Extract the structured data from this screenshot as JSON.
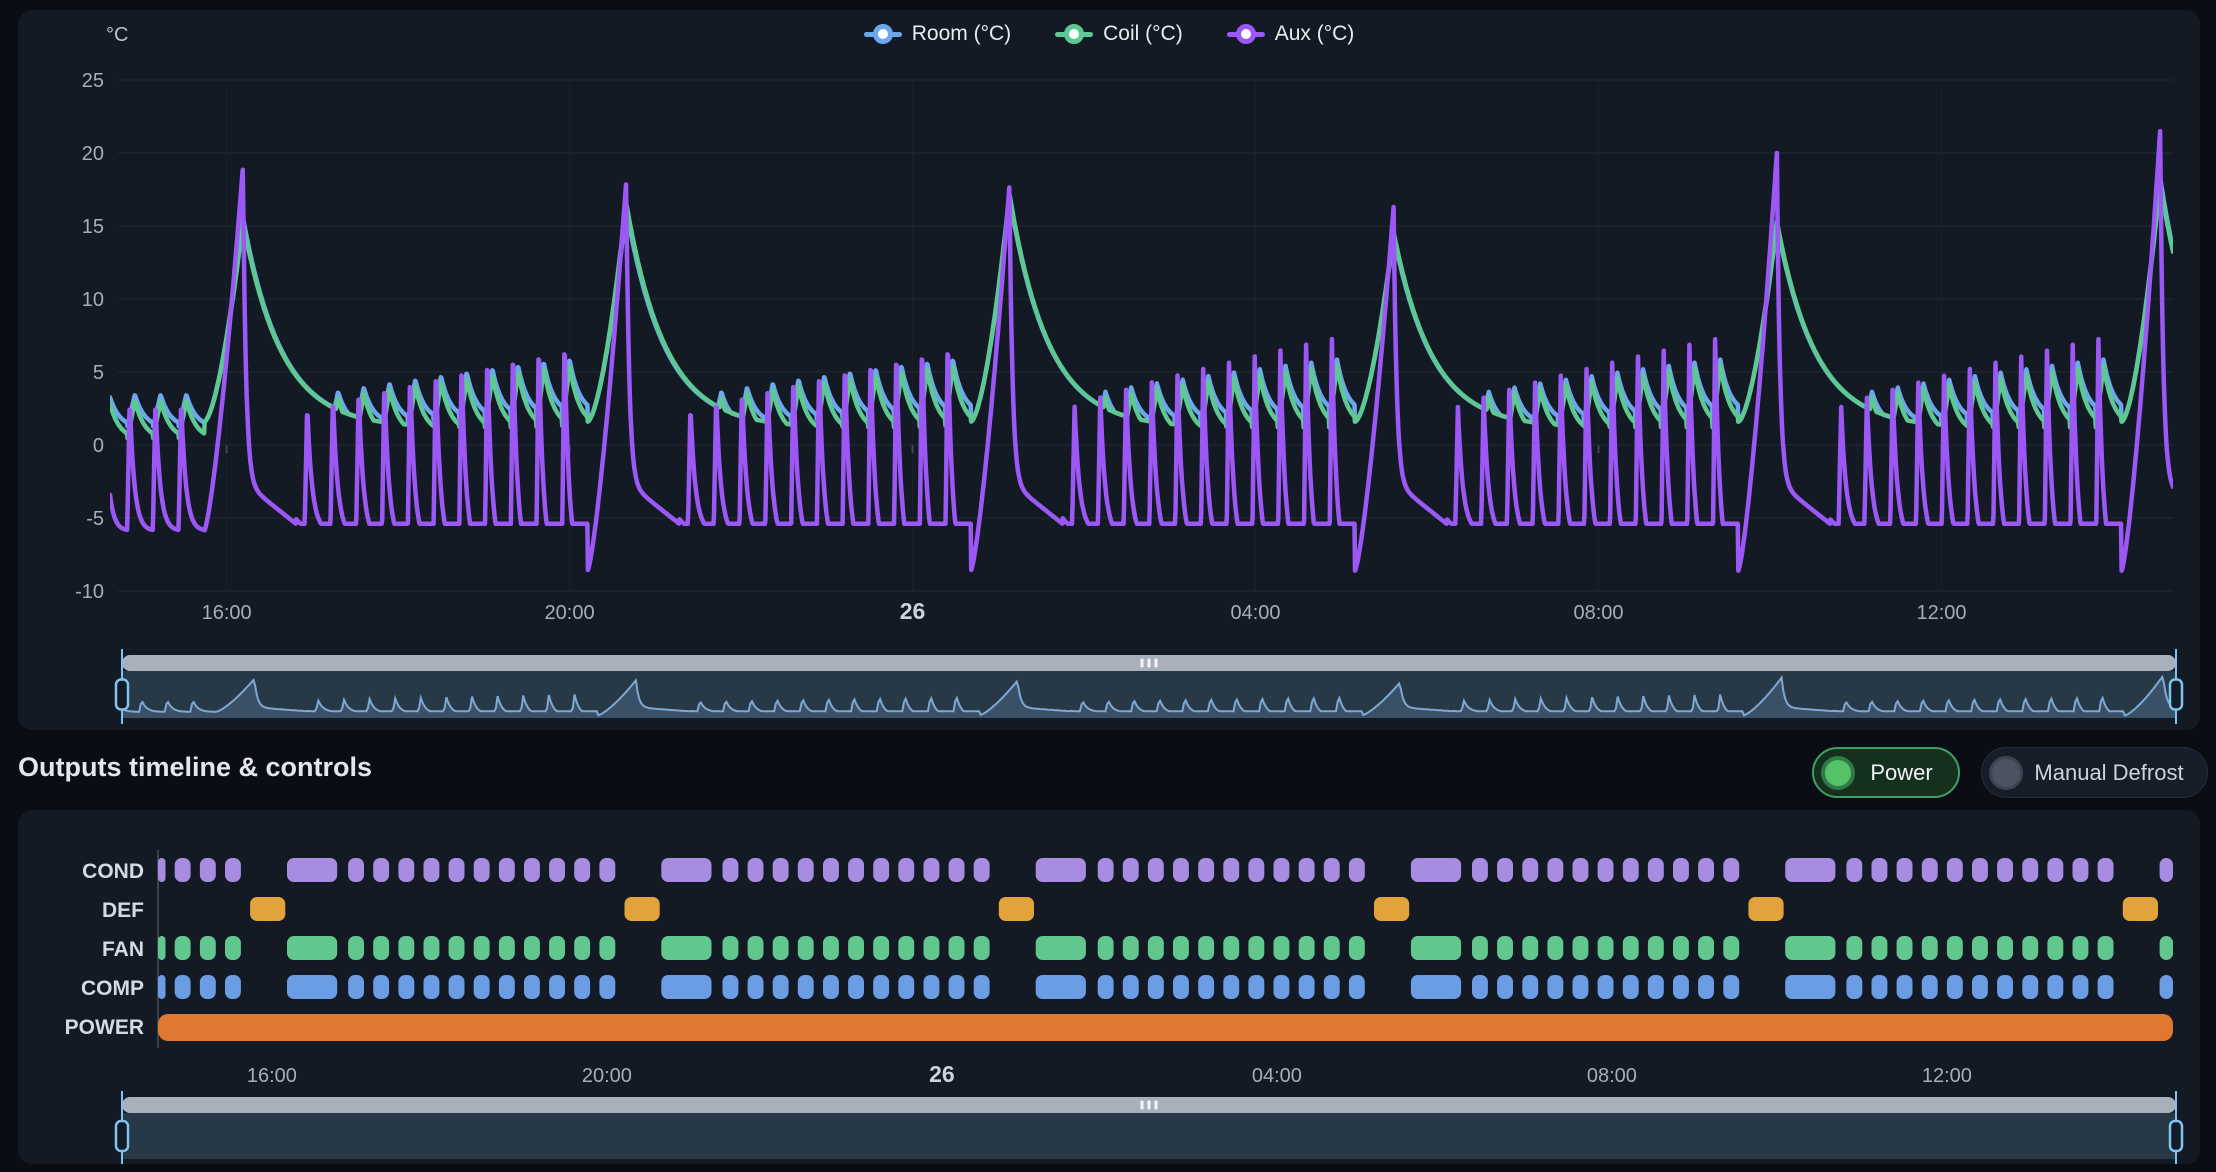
{
  "controls": {
    "title": "Outputs timeline & controls",
    "power_label": "Power",
    "manual_defrost_label": "Manual Defrost",
    "power_on": true,
    "manual_defrost_on": false,
    "power_accent": "#3fa065",
    "power_knob": "#55c168",
    "defrost_knob": "#4b5261"
  },
  "navigator": {
    "bar_color": "#a9b0bc",
    "area_color": "#273847",
    "line_color": "#7fa9d4",
    "fill_color": "rgba(127,169,212,0.22)",
    "handle_color": "#7fc4ee",
    "grip_color": "#f2f4f7"
  },
  "chart_data": [
    {
      "type": "line",
      "y_unit": "°C",
      "y_ticks": [
        25,
        20,
        15,
        10,
        5,
        0,
        -5,
        -10
      ],
      "y_range": [
        -10.5,
        26
      ],
      "x_range_hours": [
        14.64,
        38.7
      ],
      "x_ticks": [
        {
          "label": "16:00",
          "t": 16,
          "bold": false
        },
        {
          "label": "20:00",
          "t": 20,
          "bold": false
        },
        {
          "label": "26",
          "t": 24,
          "bold": true
        },
        {
          "label": "04:00",
          "t": 28,
          "bold": false
        },
        {
          "label": "08:00",
          "t": 32,
          "bold": false
        },
        {
          "label": "12:00",
          "t": 36,
          "bold": false
        }
      ],
      "series": [
        {
          "id": "room",
          "label": "Room (°C)",
          "color": "#6ba7ea"
        },
        {
          "id": "coil",
          "label": "Coil (°C)",
          "color": "#5ec893"
        },
        {
          "id": "aux",
          "label": "Aux (°C)",
          "color": "#9c58f5"
        }
      ],
      "defrost_events": [
        {
          "start": 15.74,
          "peak_aux": 19.0,
          "peak_coil": 15.3,
          "peak_room": 15.6
        },
        {
          "start": 20.21,
          "peak_aux": 18.0,
          "peak_coil": 16.6,
          "peak_room": 16.2
        },
        {
          "start": 24.68,
          "peak_aux": 17.8,
          "peak_coil": 17.2,
          "peak_room": 17.0
        },
        {
          "start": 29.16,
          "peak_aux": 16.3,
          "peak_coil": 14.6,
          "peak_room": 14.4
        },
        {
          "start": 33.63,
          "peak_aux": 20.0,
          "peak_coil": 15.3,
          "peak_room": 15.1
        },
        {
          "start": 38.1,
          "peak_aux": 21.5,
          "peak_coil": 18.0,
          "peak_room": 18.3
        }
      ],
      "cycle": {
        "period_h": 0.3,
        "comp_on_h": 0.19,
        "defrost_duration_h": 0.42,
        "peak_delay_h": 0.45,
        "pulldown_h": 0.62
      },
      "bands": {
        "aux": {
          "min": [
            -5.4,
            -8.6
          ],
          "max": [
            2.2,
            7.6
          ]
        },
        "coil": {
          "min": [
            0.2,
            1.2
          ],
          "max": [
            2.6,
            5.6
          ]
        },
        "room": {
          "min": [
            1.0,
            2.1
          ],
          "max": [
            3.0,
            6.0
          ]
        }
      }
    },
    {
      "type": "timeline",
      "x_range_hours": [
        14.64,
        38.7
      ],
      "x_ticks": [
        {
          "label": "16:00",
          "t": 16,
          "bold": false
        },
        {
          "label": "20:00",
          "t": 20,
          "bold": false
        },
        {
          "label": "26",
          "t": 24,
          "bold": true
        },
        {
          "label": "04:00",
          "t": 28,
          "bold": false
        },
        {
          "label": "08:00",
          "t": 32,
          "bold": false
        },
        {
          "label": "12:00",
          "t": 36,
          "bold": false
        }
      ],
      "rows": [
        {
          "id": "cond",
          "label": "COND",
          "color": "#a78ce2",
          "kind": "cycling"
        },
        {
          "id": "def",
          "label": "DEF",
          "color": "#e3a33c",
          "kind": "defrost"
        },
        {
          "id": "fan",
          "label": "FAN",
          "color": "#62c78e",
          "kind": "cycling"
        },
        {
          "id": "comp",
          "label": "COMP",
          "color": "#6b9de4",
          "kind": "cycling"
        },
        {
          "id": "power",
          "label": "POWER",
          "color": "#e0782f",
          "kind": "full"
        }
      ]
    }
  ],
  "style": {
    "grid_color": "#232a34",
    "vgrid_color": "#1b212b",
    "axis_text": "#a6aebb",
    "axis_text_bold": "#ccd3de",
    "axis_line": "#39414f",
    "row_label": "#d5dae2"
  }
}
